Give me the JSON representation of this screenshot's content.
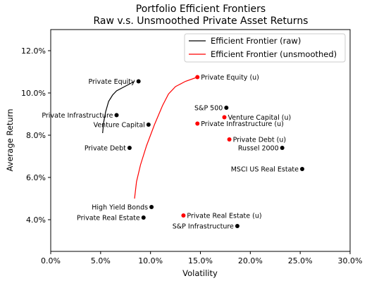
{
  "colors": {
    "raw": "#000000",
    "unsmoothed": "#ff0000"
  },
  "chart_data": {
    "type": "scatter",
    "title": "Portfolio Efficient Frontiers",
    "subtitle": "Raw v.s. Unsmoothed Private Asset Returns",
    "xlabel": "Volatility",
    "ylabel": "Average Return",
    "xlim": [
      0,
      30
    ],
    "ylim": [
      2.5,
      13
    ],
    "xticks": [
      0,
      5,
      10,
      15,
      20,
      25,
      30
    ],
    "xtick_labels": [
      "0.0%",
      "5.0%",
      "10.0%",
      "15.0%",
      "20.0%",
      "25.0%",
      "30.0%"
    ],
    "yticks": [
      4,
      6,
      8,
      10,
      12
    ],
    "ytick_labels": [
      "4.0%",
      "6.0%",
      "8.0%",
      "10.0%",
      "12.0%"
    ],
    "grid": false,
    "legend": {
      "placement": "top-right",
      "entries": [
        {
          "name": "Efficient Frontier (raw)",
          "color": "#000000"
        },
        {
          "name": "Efficient Frontier (unsmoothed)",
          "color": "#ff0000"
        }
      ]
    },
    "series": [
      {
        "name": "Efficient Frontier (raw)",
        "type": "line",
        "color": "#000000",
        "x": [
          5.2,
          5.3,
          5.5,
          5.8,
          6.2,
          6.6,
          7.2,
          7.8,
          8.4
        ],
        "y": [
          8.1,
          8.6,
          9.1,
          9.6,
          9.9,
          10.1,
          10.25,
          10.4,
          10.55
        ]
      },
      {
        "name": "Efficient Frontier (unsmoothed)",
        "type": "line",
        "color": "#ff0000",
        "x": [
          8.4,
          8.6,
          9.0,
          9.6,
          10.4,
          11.2,
          11.8,
          12.5,
          13.5,
          14.7
        ],
        "y": [
          5.0,
          5.8,
          6.6,
          7.5,
          8.5,
          9.4,
          9.95,
          10.3,
          10.55,
          10.75
        ]
      }
    ],
    "points": [
      {
        "label": "Private Equity",
        "x": 8.8,
        "y": 10.55,
        "color": "#000000",
        "side": "left"
      },
      {
        "label": "Private Infrastructure",
        "x": 6.6,
        "y": 8.95,
        "color": "#000000",
        "side": "left"
      },
      {
        "label": "Venture Capital",
        "x": 9.8,
        "y": 8.5,
        "color": "#000000",
        "side": "left"
      },
      {
        "label": "Private Debt",
        "x": 7.9,
        "y": 7.4,
        "color": "#000000",
        "side": "left"
      },
      {
        "label": "High Yield Bonds",
        "x": 10.1,
        "y": 4.6,
        "color": "#000000",
        "side": "left"
      },
      {
        "label": "Private Real Estate",
        "x": 9.3,
        "y": 4.1,
        "color": "#000000",
        "side": "left"
      },
      {
        "label": "S&P 500",
        "x": 17.6,
        "y": 9.3,
        "color": "#000000",
        "side": "left"
      },
      {
        "label": "Russel 2000",
        "x": 23.2,
        "y": 7.4,
        "color": "#000000",
        "side": "left"
      },
      {
        "label": "MSCI US Real Estate",
        "x": 25.2,
        "y": 6.4,
        "color": "#000000",
        "side": "left"
      },
      {
        "label": "S&P Infrastructure",
        "x": 18.7,
        "y": 3.7,
        "color": "#000000",
        "side": "left"
      },
      {
        "label": "Private Equity (u)",
        "x": 14.7,
        "y": 10.75,
        "color": "#ff0000",
        "side": "right"
      },
      {
        "label": "Venture Capital (u)",
        "x": 17.4,
        "y": 8.85,
        "color": "#ff0000",
        "side": "right"
      },
      {
        "label": "Private Infrastructure (u)",
        "x": 14.7,
        "y": 8.55,
        "color": "#ff0000",
        "side": "right"
      },
      {
        "label": "Private Debt (u)",
        "x": 17.9,
        "y": 7.8,
        "color": "#ff0000",
        "side": "right"
      },
      {
        "label": "Private Real Estate (u)",
        "x": 13.3,
        "y": 4.2,
        "color": "#ff0000",
        "side": "right"
      }
    ]
  }
}
